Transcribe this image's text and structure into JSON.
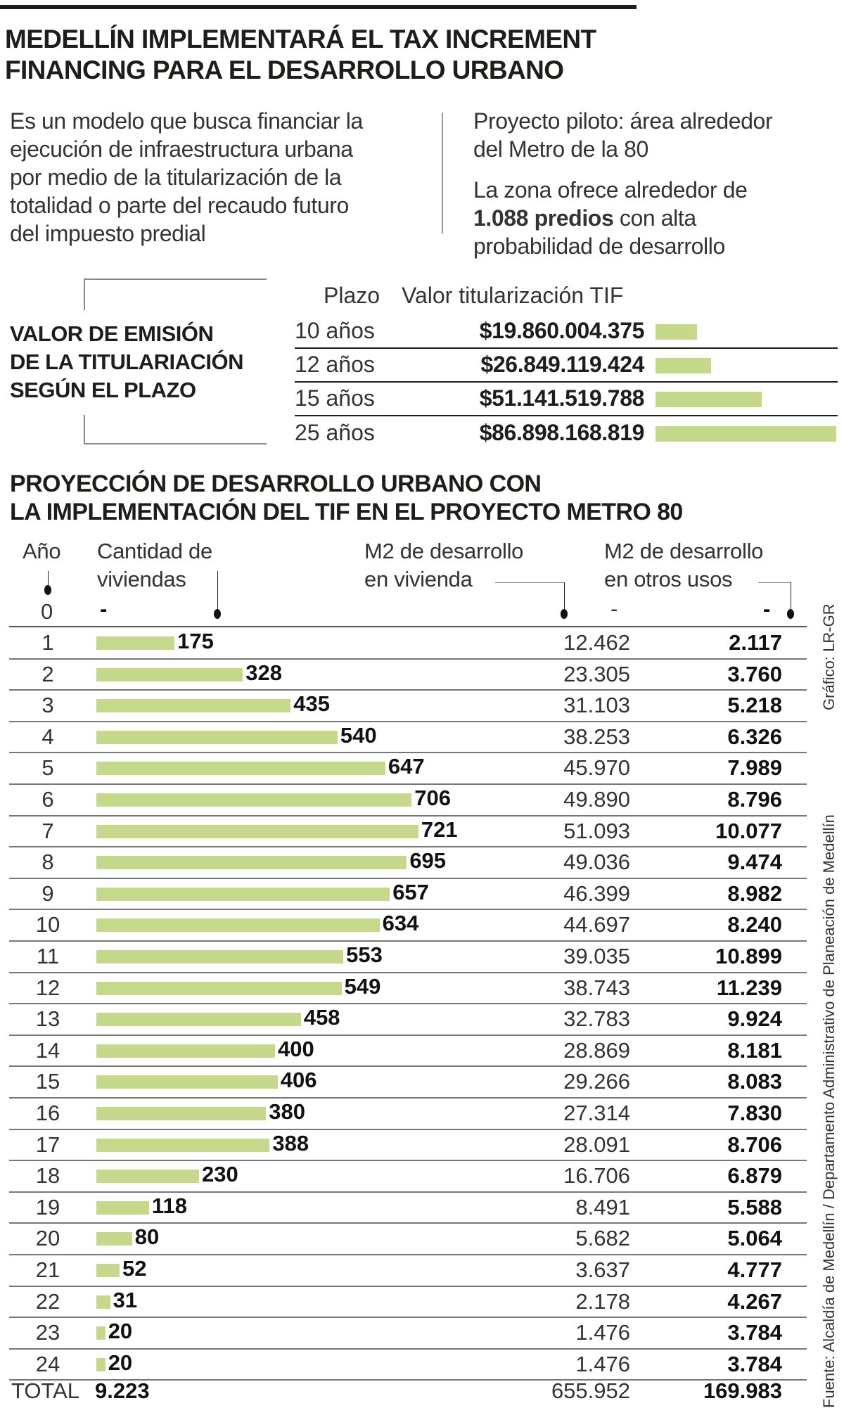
{
  "header": {
    "title_lines": [
      "MEDELLÍN IMPLEMENTARÁ EL TAX INCREMENT",
      "FINANCING PARA EL DESARROLLO URBANO"
    ]
  },
  "intro": {
    "left_lines": [
      "Es un modelo que busca financiar la",
      "ejecución de infraestructura urbana",
      "por medio de la titularización de la",
      "totalidad o parte del recaudo futuro",
      "del impuesto predial"
    ],
    "right_p1_lines": [
      "Proyecto piloto: área alrededor",
      "del Metro de la 80"
    ],
    "right_p2_line1": "La zona ofrece alrededor de",
    "right_p2_bold": "1.088 predios",
    "right_p2_rest": " con alta",
    "right_p2_line3": "probabilidad de desarrollo"
  },
  "chart_data": [
    {
      "type": "bar",
      "title": "VALOR DE EMISIÓN DE LA TITULARIACIÓN SEGÚN EL PLAZO",
      "title_lines": [
        "VALOR DE EMISIÓN",
        "DE LA TITULARIACIÓN",
        "SEGÚN EL PLAZO"
      ],
      "col_headers": [
        "Plazo",
        "Valor titularización TIF"
      ],
      "categories": [
        "10 años",
        "12 años",
        "15 años",
        "25 años"
      ],
      "value_labels": [
        "$19.860.004.375",
        "$26.849.119.424",
        "$51.141.519.788",
        "$86.898.168.819"
      ],
      "values": [
        19860004375,
        26849119424,
        51141519788,
        86898168819
      ]
    },
    {
      "type": "table",
      "title_lines": [
        "PROYECCIÓN DE DESARROLLO URBANO CON",
        "LA IMPLEMENTACIÓN DEL TIF EN EL PROYECTO METRO 80"
      ],
      "col_headers": {
        "year": "Año",
        "homes": [
          "Cantidad de",
          "viviendas"
        ],
        "m2_home": [
          "M2 de desarrollo",
          "en vivienda"
        ],
        "m2_other": [
          "M2 de desarrollo",
          "en otros usos"
        ]
      },
      "year0": {
        "year": "0",
        "homes": "-",
        "m2_home": "-",
        "m2_other": "-"
      },
      "rows": [
        {
          "year": "1",
          "homes": 175,
          "homes_label": "175",
          "m2_home": "12.462",
          "m2_other": "2.117"
        },
        {
          "year": "2",
          "homes": 328,
          "homes_label": "328",
          "m2_home": "23.305",
          "m2_other": "3.760"
        },
        {
          "year": "3",
          "homes": 435,
          "homes_label": "435",
          "m2_home": "31.103",
          "m2_other": "5.218"
        },
        {
          "year": "4",
          "homes": 540,
          "homes_label": "540",
          "m2_home": "38.253",
          "m2_other": "6.326"
        },
        {
          "year": "5",
          "homes": 647,
          "homes_label": "647",
          "m2_home": "45.970",
          "m2_other": "7.989"
        },
        {
          "year": "6",
          "homes": 706,
          "homes_label": "706",
          "m2_home": "49.890",
          "m2_other": "8.796"
        },
        {
          "year": "7",
          "homes": 721,
          "homes_label": "721",
          "m2_home": "51.093",
          "m2_other": "10.077"
        },
        {
          "year": "8",
          "homes": 695,
          "homes_label": "695",
          "m2_home": "49.036",
          "m2_other": "9.474"
        },
        {
          "year": "9",
          "homes": 657,
          "homes_label": "657",
          "m2_home": "46.399",
          "m2_other": "8.982"
        },
        {
          "year": "10",
          "homes": 634,
          "homes_label": "634",
          "m2_home": "44.697",
          "m2_other": "8.240"
        },
        {
          "year": "11",
          "homes": 553,
          "homes_label": "553",
          "m2_home": "39.035",
          "m2_other": "10.899"
        },
        {
          "year": "12",
          "homes": 549,
          "homes_label": "549",
          "m2_home": "38.743",
          "m2_other": "11.239"
        },
        {
          "year": "13",
          "homes": 458,
          "homes_label": "458",
          "m2_home": "32.783",
          "m2_other": "9.924"
        },
        {
          "year": "14",
          "homes": 400,
          "homes_label": "400",
          "m2_home": "28.869",
          "m2_other": "8.181"
        },
        {
          "year": "15",
          "homes": 406,
          "homes_label": "406",
          "m2_home": "29.266",
          "m2_other": "8.083"
        },
        {
          "year": "16",
          "homes": 380,
          "homes_label": "380",
          "m2_home": "27.314",
          "m2_other": "7.830"
        },
        {
          "year": "17",
          "homes": 388,
          "homes_label": "388",
          "m2_home": "28.091",
          "m2_other": "8.706"
        },
        {
          "year": "18",
          "homes": 230,
          "homes_label": "230",
          "m2_home": "16.706",
          "m2_other": "6.879"
        },
        {
          "year": "19",
          "homes": 118,
          "homes_label": "118",
          "m2_home": "8.491",
          "m2_other": "5.588"
        },
        {
          "year": "20",
          "homes": 80,
          "homes_label": "80",
          "m2_home": "5.682",
          "m2_other": "5.064"
        },
        {
          "year": "21",
          "homes": 52,
          "homes_label": "52",
          "m2_home": "3.637",
          "m2_other": "4.777"
        },
        {
          "year": "22",
          "homes": 31,
          "homes_label": "31",
          "m2_home": "2.178",
          "m2_other": "4.267"
        },
        {
          "year": "23",
          "homes": 20,
          "homes_label": "20",
          "m2_home": "1.476",
          "m2_other": "3.784"
        },
        {
          "year": "24",
          "homes": 20,
          "homes_label": "20",
          "m2_home": "1.476",
          "m2_other": "3.784"
        }
      ],
      "total": {
        "label": "TOTAL",
        "homes": "9.223",
        "m2_home": "655.952",
        "m2_other": "169.983"
      }
    }
  ],
  "credits": {
    "graphic": "Gráfico: LR-GR",
    "source": "Fuente: Alcaldía de Medellín / Departamento Administrativo de Planeación de Medellín"
  },
  "colors": {
    "bar": "#c6d98a",
    "text": "#1d1d1b"
  }
}
